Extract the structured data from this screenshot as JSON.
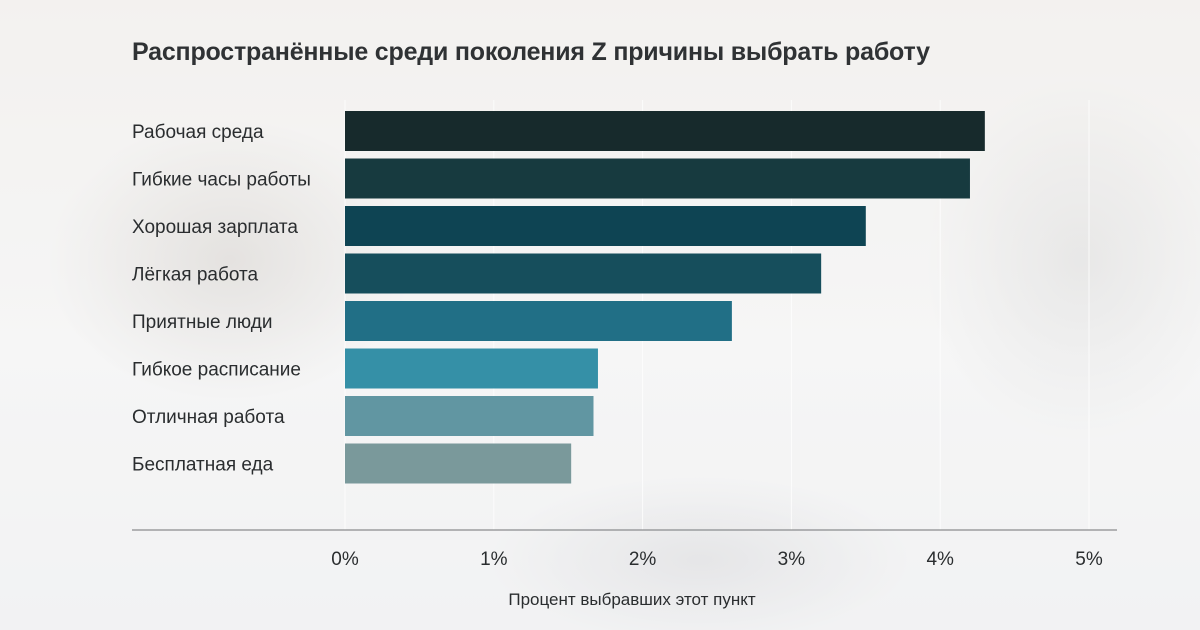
{
  "chart_data": {
    "type": "bar",
    "orientation": "horizontal",
    "title": "Распространённые среди поколения Z причины выбрать работу",
    "xlabel": "Процент выбравших этот пункт",
    "ylabel": "",
    "categories": [
      "Рабочая среда",
      "Гибкие часы работы",
      "Хорошая зарплата",
      "Лёгкая работа",
      "Приятные люди",
      "Гибкое расписание",
      "Отличная работа",
      "Бесплатная еда"
    ],
    "values": [
      4.3,
      4.2,
      3.5,
      3.2,
      2.6,
      1.7,
      1.67,
      1.52
    ],
    "colors": [
      "#172a2c",
      "#173a3f",
      "#0e4453",
      "#164e5c",
      "#216f86",
      "#3590a7",
      "#6196a2",
      "#7a999b"
    ],
    "xlim": [
      0,
      5
    ],
    "xticks": [
      0,
      1,
      2,
      3,
      4,
      5
    ],
    "xtick_labels": [
      "0%",
      "1%",
      "2%",
      "3%",
      "4%",
      "5%"
    ],
    "grid": "vertical",
    "legend": "none"
  }
}
